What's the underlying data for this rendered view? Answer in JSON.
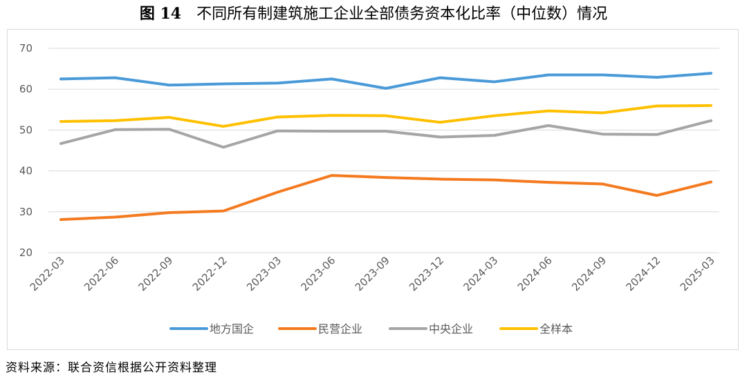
{
  "title": {
    "number": "图 14",
    "text": "不同所有制建筑施工企业全部债务资本化比率（中位数）情况"
  },
  "source": "资料来源：联合资信根据公开资料整理",
  "chart_data": {
    "type": "line",
    "categories": [
      "2022-03",
      "2022-06",
      "2022-09",
      "2022-12",
      "2023-03",
      "2023-06",
      "2023-09",
      "2023-12",
      "2024-03",
      "2024-06",
      "2024-09",
      "2024-12",
      "2025-03"
    ],
    "yticks": [
      20,
      30,
      40,
      50,
      60,
      70
    ],
    "ylim": [
      20,
      70
    ],
    "grid": true,
    "legend_position": "bottom",
    "series": [
      {
        "name": "地方国企",
        "color": "#4a9ad8",
        "values": [
          62.5,
          62.8,
          61.0,
          61.3,
          61.5,
          62.5,
          60.2,
          62.8,
          61.8,
          63.5,
          63.5,
          62.9,
          63.9
        ]
      },
      {
        "name": "民营企业",
        "color": "#f47a20",
        "values": [
          28.1,
          28.7,
          29.8,
          30.2,
          34.8,
          38.9,
          38.4,
          38.0,
          37.8,
          37.2,
          36.8,
          34.0,
          37.3
        ]
      },
      {
        "name": "中央企业",
        "color": "#a5a5a5",
        "values": [
          46.7,
          50.1,
          50.2,
          45.8,
          49.8,
          49.7,
          49.7,
          48.3,
          48.7,
          51.1,
          49.0,
          48.9,
          52.3
        ]
      },
      {
        "name": "全样本",
        "color": "#ffc000",
        "values": [
          52.1,
          52.3,
          53.1,
          50.9,
          53.2,
          53.6,
          53.5,
          51.9,
          53.5,
          54.7,
          54.2,
          55.9,
          56.0
        ]
      }
    ]
  }
}
